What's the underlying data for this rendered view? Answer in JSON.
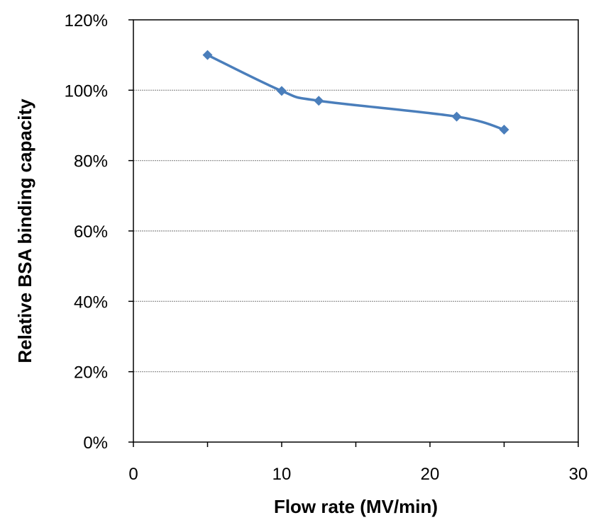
{
  "chart_data": {
    "type": "scatter",
    "title": "",
    "xlabel": "Flow rate (MV/min)",
    "ylabel": "Relative BSA binding  capacity",
    "xlim": [
      0,
      30
    ],
    "ylim": [
      0,
      1.2
    ],
    "x_ticks": [
      0,
      10,
      20,
      30
    ],
    "x_tick_labels": [
      "0",
      "10",
      "20",
      "30"
    ],
    "y_ticks": [
      0,
      0.2,
      0.4,
      0.6,
      0.8,
      1.0,
      1.2
    ],
    "y_tick_labels": [
      "0%",
      "20%",
      "40%",
      "60%",
      "80%",
      "100%",
      "120%"
    ],
    "grid": "horizontal",
    "legend": "none",
    "series": [
      {
        "marker": "diamond",
        "color": "#4a7ebb",
        "x": [
          5,
          10,
          12.5,
          21.8,
          25
        ],
        "y": [
          1.1,
          0.998,
          0.97,
          0.925,
          0.888
        ],
        "trendline": "smooth"
      }
    ]
  }
}
